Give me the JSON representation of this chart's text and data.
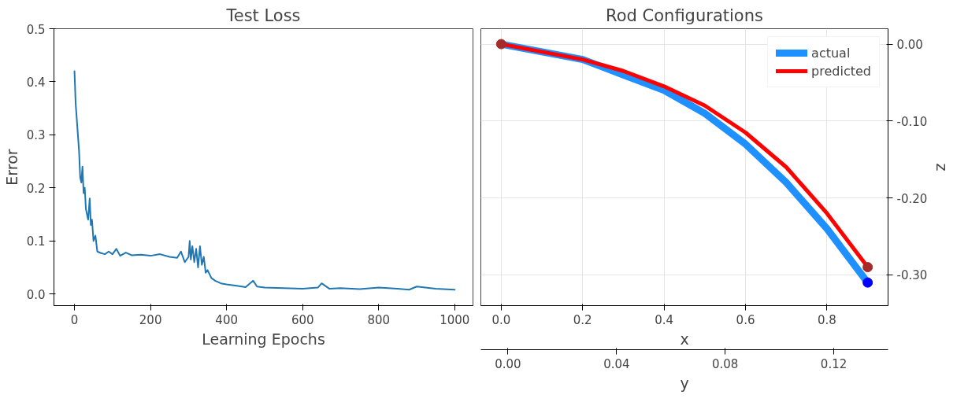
{
  "chart_data": [
    {
      "type": "line",
      "title": "Test Loss",
      "xlabel": "Learning Epochs",
      "ylabel": "Error",
      "xlim": [
        -54,
        1048
      ],
      "ylim": [
        -0.022,
        0.5
      ],
      "xticks": [
        0,
        200,
        400,
        600,
        800,
        1000
      ],
      "yticks": [
        {
          "value": 0,
          "label": "0.0"
        },
        {
          "value": 0.1,
          "label": "0.1"
        },
        {
          "value": 0.2,
          "label": "0.2"
        },
        {
          "value": 0.3,
          "label": "0.3"
        },
        {
          "value": 0.4,
          "label": "0.4"
        },
        {
          "value": 0.5,
          "label": "0.5"
        }
      ],
      "grid": false,
      "legend": false,
      "series": [
        {
          "color": "#1f77b4",
          "x": [
            0,
            3,
            6,
            9,
            12,
            15,
            18,
            21,
            24,
            27,
            30,
            33,
            36,
            40,
            43,
            46,
            50,
            55,
            60,
            70,
            80,
            90,
            100,
            110,
            120,
            135,
            150,
            175,
            200,
            225,
            250,
            270,
            280,
            290,
            300,
            303,
            306,
            310,
            315,
            320,
            325,
            330,
            335,
            340,
            345,
            350,
            360,
            370,
            385,
            400,
            430,
            450,
            470,
            480,
            500,
            550,
            600,
            640,
            650,
            670,
            700,
            750,
            800,
            850,
            880,
            900,
            950,
            1000
          ],
          "values": [
            0.42,
            0.36,
            0.33,
            0.3,
            0.27,
            0.22,
            0.21,
            0.24,
            0.19,
            0.2,
            0.16,
            0.15,
            0.14,
            0.18,
            0.13,
            0.14,
            0.1,
            0.11,
            0.08,
            0.077,
            0.075,
            0.08,
            0.075,
            0.085,
            0.072,
            0.078,
            0.073,
            0.074,
            0.072,
            0.075,
            0.07,
            0.068,
            0.08,
            0.06,
            0.07,
            0.1,
            0.065,
            0.09,
            0.06,
            0.085,
            0.05,
            0.09,
            0.055,
            0.07,
            0.04,
            0.045,
            0.03,
            0.025,
            0.02,
            0.018,
            0.015,
            0.013,
            0.025,
            0.014,
            0.012,
            0.011,
            0.01,
            0.012,
            0.02,
            0.01,
            0.011,
            0.009,
            0.012,
            0.01,
            0.008,
            0.014,
            0.01,
            0.008
          ]
        }
      ]
    },
    {
      "type": "line",
      "title": "Rod Configurations",
      "xlabel": "x",
      "ylabel": "z",
      "x2label": "y",
      "xlim": [
        -0.05,
        0.95
      ],
      "ylim": [
        -0.34,
        0.02
      ],
      "x2lim": [
        -0.01,
        0.14
      ],
      "xticks": [
        {
          "value": 0,
          "label": "0.0"
        },
        {
          "value": 0.2,
          "label": "0.2"
        },
        {
          "value": 0.4,
          "label": "0.4"
        },
        {
          "value": 0.6,
          "label": "0.6"
        },
        {
          "value": 0.8,
          "label": "0.8"
        }
      ],
      "yticks": [
        {
          "value": 0,
          "label": "0.00"
        },
        {
          "value": -0.1,
          "label": "-0.10"
        },
        {
          "value": -0.2,
          "label": "-0.20"
        },
        {
          "value": -0.3,
          "label": "-0.30"
        }
      ],
      "x2ticks": [
        {
          "value": 0,
          "label": "0.00"
        },
        {
          "value": 0.04,
          "label": "0.04"
        },
        {
          "value": 0.08,
          "label": "0.08"
        },
        {
          "value": 0.12,
          "label": "0.12"
        }
      ],
      "grid": true,
      "legend": "top right",
      "series": [
        {
          "name": "actual",
          "color": "#1e90ff",
          "x": [
            0,
            0.1,
            0.2,
            0.3,
            0.4,
            0.5,
            0.6,
            0.7,
            0.8,
            0.9
          ],
          "values": [
            0,
            -0.01,
            -0.02,
            -0.04,
            -0.06,
            -0.09,
            -0.13,
            -0.18,
            -0.24,
            -0.31
          ]
        },
        {
          "name": "predicted",
          "color": "#ff0000",
          "x": [
            0,
            0.1,
            0.2,
            0.3,
            0.4,
            0.5,
            0.6,
            0.7,
            0.8,
            0.9
          ],
          "values": [
            0,
            -0.01,
            -0.02,
            -0.035,
            -0.055,
            -0.08,
            -0.115,
            -0.16,
            -0.22,
            -0.29
          ]
        },
        {
          "type": "scatter",
          "x": [
            0,
            0.9,
            0.9
          ],
          "values": [
            0,
            -0.29,
            -0.31
          ],
          "colors": [
            "#a52a2a",
            "#a52a2a",
            "#0000ff"
          ]
        }
      ]
    }
  ]
}
